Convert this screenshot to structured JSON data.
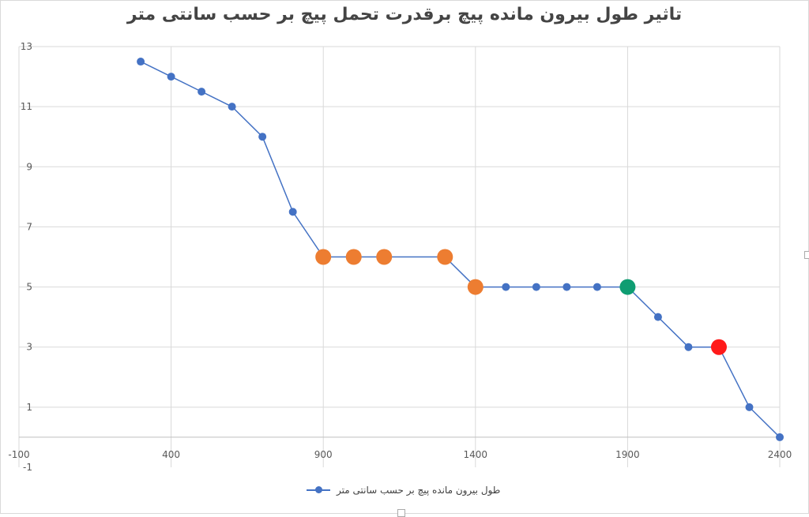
{
  "chart_data": {
    "type": "scatter",
    "title": "تاثیر طول بیرون مانده پیچ برقدرت تحمل پیچ بر حسب سانتی متر",
    "xlabel": "",
    "ylabel": "",
    "xlim": [
      -100,
      2400
    ],
    "ylim": [
      -1,
      13
    ],
    "x_ticks": [
      -100,
      400,
      900,
      1400,
      1900,
      2400
    ],
    "y_ticks": [
      -1,
      1,
      3,
      5,
      7,
      9,
      11,
      13
    ],
    "grid": true,
    "legend_position": "bottom",
    "series": [
      {
        "name": "طول بیرون مانده پیچ بر حسب سانتی متر",
        "color": "#4472c4",
        "x": [
          300,
          400,
          500,
          600,
          700,
          800,
          900,
          1000,
          1100,
          1300,
          1400,
          1500,
          1600,
          1700,
          1800,
          1900,
          2000,
          2100,
          2200,
          2300,
          2400
        ],
        "y": [
          12.5,
          12,
          11.5,
          11,
          10,
          7.5,
          6,
          6,
          6,
          6,
          5,
          5,
          5,
          5,
          5,
          5,
          4,
          3,
          3,
          1,
          0
        ]
      }
    ],
    "highlights": [
      {
        "x": 900,
        "y": 6,
        "color": "#ed7d31"
      },
      {
        "x": 1000,
        "y": 6,
        "color": "#ed7d31"
      },
      {
        "x": 1100,
        "y": 6,
        "color": "#ed7d31"
      },
      {
        "x": 1300,
        "y": 6,
        "color": "#ed7d31"
      },
      {
        "x": 1400,
        "y": 5,
        "color": "#ed7d31"
      },
      {
        "x": 1900,
        "y": 5,
        "color": "#0f9d72"
      },
      {
        "x": 2200,
        "y": 3,
        "color": "#ff1a1a"
      }
    ]
  }
}
